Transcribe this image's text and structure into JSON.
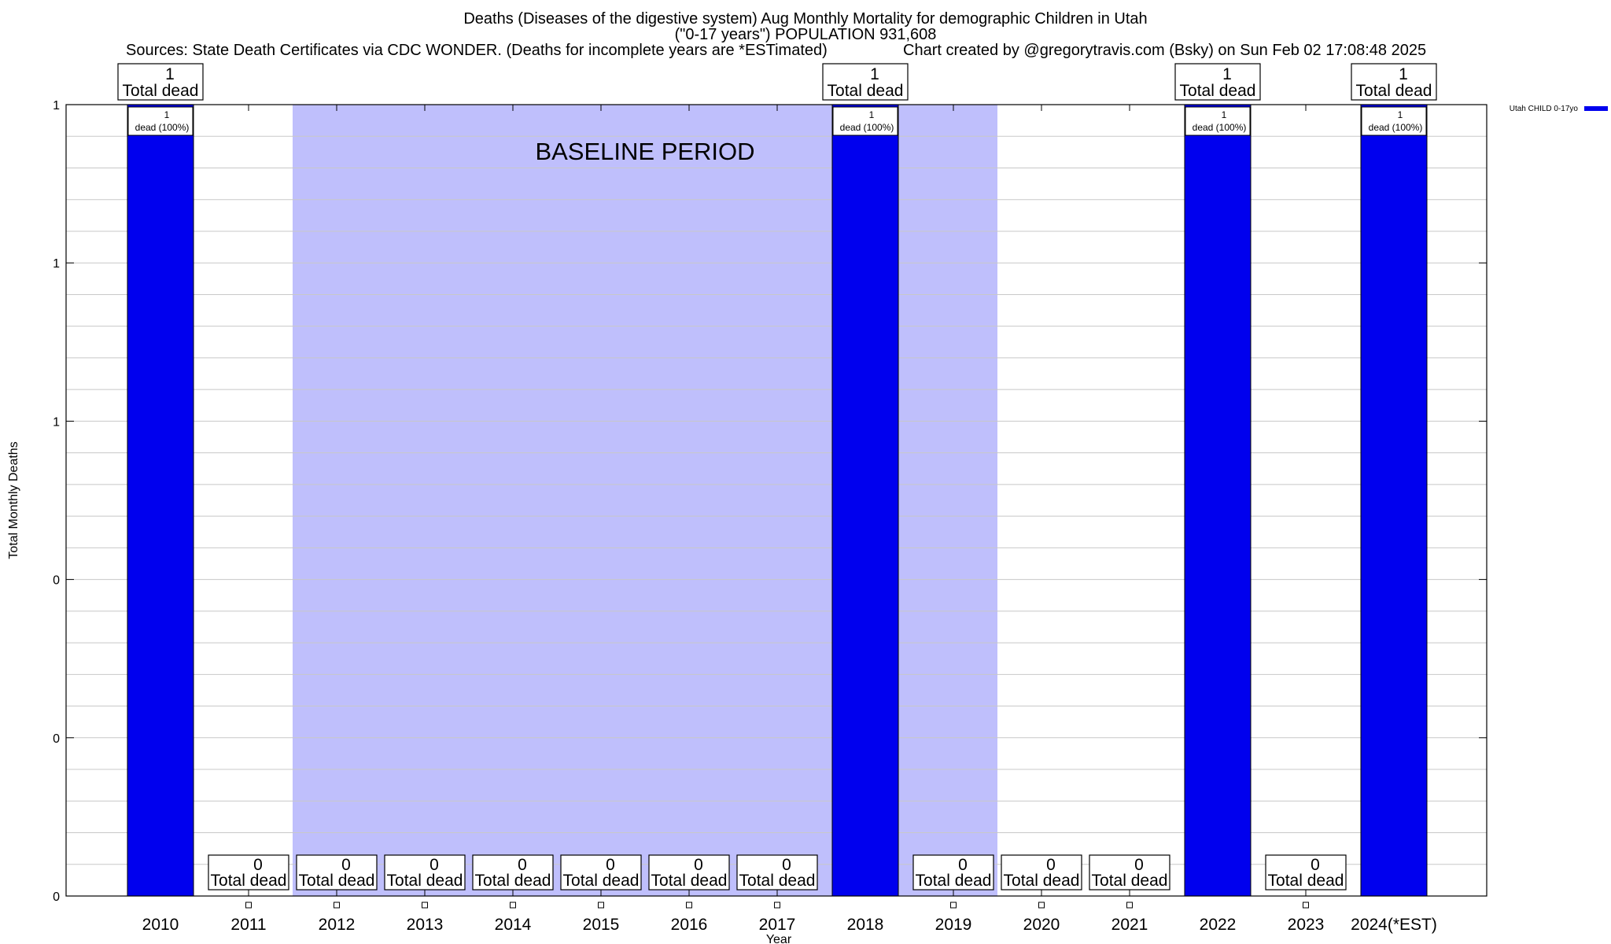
{
  "header": {
    "title_line1": "Deaths (Diseases of the digestive system) Aug Monthly Mortality for demographic Children in Utah",
    "title_line2": "(\"0-17 years\") POPULATION 931,608",
    "sources": "Sources: State Death Certificates via CDC WONDER. (Deaths for incomplete years are *ESTimated)",
    "credit": "Chart created by @gregorytravis.com (Bsky) on Sun Feb 02 17:08:48 2025"
  },
  "chart_data": {
    "type": "bar",
    "xlabel": "Year",
    "ylabel": "Total Monthly Deaths",
    "ylim": [
      0,
      1
    ],
    "y_tick_labels": [
      "0",
      "0",
      "0",
      "1",
      "1",
      "1"
    ],
    "categories": [
      "2010",
      "2011",
      "2012",
      "2013",
      "2014",
      "2015",
      "2016",
      "2017",
      "2018",
      "2019",
      "2020",
      "2021",
      "2022",
      "2023",
      "2024(*EST)"
    ],
    "series": [
      {
        "name": "Utah CHILD 0-17yo",
        "color": "#0000ee",
        "values": [
          1,
          0,
          0,
          0,
          0,
          0,
          0,
          0,
          1,
          0,
          0,
          0,
          1,
          0,
          1
        ]
      }
    ],
    "total_labels": [
      [
        "1",
        "Total dead"
      ],
      [
        "0",
        "Total dead"
      ],
      [
        "0",
        "Total dead"
      ],
      [
        "0",
        "Total dead"
      ],
      [
        "0",
        "Total dead"
      ],
      [
        "0",
        "Total dead"
      ],
      [
        "0",
        "Total dead"
      ],
      [
        "0",
        "Total dead"
      ],
      [
        "1",
        "Total dead"
      ],
      [
        "0",
        "Total dead"
      ],
      [
        "0",
        "Total dead"
      ],
      [
        "0",
        "Total dead"
      ],
      [
        "1",
        "Total dead"
      ],
      [
        "0",
        "Total dead"
      ],
      [
        "1",
        "Total dead"
      ]
    ],
    "inner_labels": [
      [
        "1",
        "dead (100%)"
      ],
      null,
      null,
      null,
      null,
      null,
      null,
      null,
      [
        "1",
        "dead (100%)"
      ],
      null,
      null,
      null,
      [
        "1",
        "dead (100%)"
      ],
      null,
      [
        "1",
        "dead (100%)"
      ]
    ],
    "baseline_period": {
      "label": "BASELINE PERIOD",
      "start_year": "2012",
      "end_year": "2019",
      "color": "#bfbffc"
    },
    "legend": {
      "placement": "top-right",
      "label": "Utah CHILD 0-17yo"
    },
    "grid": true
  }
}
